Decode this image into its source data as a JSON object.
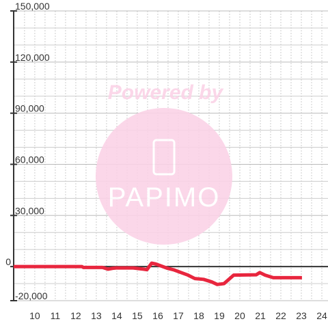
{
  "chart_data": {
    "type": "line",
    "watermark_title": "Powered by",
    "watermark_logo": "PAPIMO",
    "xlim": [
      8.97,
      24.3
    ],
    "ylim": [
      -20000,
      150000
    ],
    "xticks": [
      10,
      11,
      12,
      13,
      14,
      15,
      16,
      17,
      18,
      19,
      20,
      21,
      22,
      23,
      24
    ],
    "yticks": [
      {
        "value": -20000,
        "label": "-20,000"
      },
      0,
      {
        "value": 30000,
        "label": "30,000"
      },
      {
        "value": 60000,
        "label": "60,000"
      },
      {
        "value": 90000,
        "label": "90,000"
      },
      {
        "value": 120000,
        "label": "120,000"
      },
      {
        "value": 150000,
        "label": "150,000"
      }
    ],
    "ygrid": [
      -10000,
      10000,
      20000,
      40000,
      50000,
      70000,
      80000,
      100000,
      110000,
      130000,
      140000
    ],
    "xgrid": [
      9.5,
      10,
      10.5,
      11,
      11.5,
      12,
      12.5,
      13,
      13.5,
      14,
      14.5,
      15,
      15.5,
      16,
      16.5,
      17,
      17.5,
      18,
      18.5,
      19,
      19.5,
      20,
      20.5,
      21,
      21.5,
      22,
      22.5,
      23,
      23.5,
      24
    ],
    "grid": true,
    "x": [
      8.97,
      12.3,
      12.37,
      13.3,
      13.57,
      13.8,
      13.97,
      14.8,
      15.3,
      15.47,
      15.7,
      15.9,
      16.13,
      16.47,
      16.8,
      17.13,
      17.47,
      17.8,
      18.23,
      18.63,
      18.9,
      19.23,
      19.7,
      20.8,
      20.97,
      21.23,
      21.63,
      23.03
    ],
    "series": [
      {
        "color": "#e8263e",
        "values": [
          0,
          0,
          -500,
          -500,
          -1500,
          -1000,
          -800,
          -800,
          -1500,
          -1800,
          2000,
          1500,
          500,
          -1000,
          -2000,
          -3500,
          -5000,
          -7000,
          -7500,
          -9000,
          -10500,
          -10000,
          -5000,
          -4800,
          -3500,
          -5000,
          -6500,
          -6500
        ]
      }
    ]
  }
}
